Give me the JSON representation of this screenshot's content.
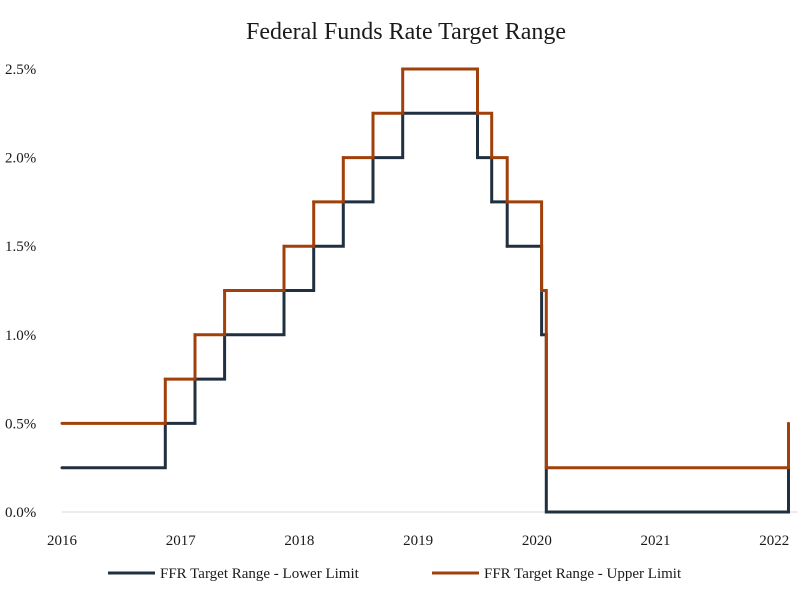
{
  "chart_data": {
    "type": "line",
    "step": true,
    "title": "Federal Funds Rate Target Range",
    "xlabel": "",
    "ylabel": "",
    "xlim": [
      2016.0,
      2022.2
    ],
    "ylim": [
      0.0,
      2.5
    ],
    "x_ticks": [
      {
        "value": 2016,
        "label": "2016"
      },
      {
        "value": 2017,
        "label": "2017"
      },
      {
        "value": 2018,
        "label": "2018"
      },
      {
        "value": 2019,
        "label": "2019"
      },
      {
        "value": 2020,
        "label": "2020"
      },
      {
        "value": 2021,
        "label": "2021"
      },
      {
        "value": 2022,
        "label": "2022"
      }
    ],
    "y_ticks": [
      {
        "value": 0.0,
        "label": "0.0%"
      },
      {
        "value": 0.5,
        "label": "0.5%"
      },
      {
        "value": 1.0,
        "label": "1.0%"
      },
      {
        "value": 1.5,
        "label": "1.5%"
      },
      {
        "value": 2.0,
        "label": "2.0%"
      },
      {
        "value": 2.5,
        "label": "2.5%"
      }
    ],
    "grid": false,
    "legend_position": "bottom",
    "series": [
      {
        "name": "FFR Target Range - Lower Limit",
        "color": "#203040",
        "x": [
          2016.0,
          2016.87,
          2017.12,
          2017.37,
          2017.87,
          2018.12,
          2018.37,
          2018.62,
          2018.87,
          2019.5,
          2019.62,
          2019.75,
          2020.04,
          2020.08,
          2022.12
        ],
        "y": [
          0.25,
          0.5,
          0.75,
          1.0,
          1.25,
          1.5,
          1.75,
          2.0,
          2.25,
          2.0,
          1.75,
          1.5,
          1.0,
          0.0,
          0.25
        ]
      },
      {
        "name": "FFR Target Range - Upper Limit",
        "color": "#a2400c",
        "x": [
          2016.0,
          2016.87,
          2017.12,
          2017.37,
          2017.87,
          2018.12,
          2018.37,
          2018.62,
          2018.87,
          2019.5,
          2019.62,
          2019.75,
          2020.04,
          2020.08,
          2022.12
        ],
        "y": [
          0.5,
          0.75,
          1.0,
          1.25,
          1.5,
          1.75,
          2.0,
          2.25,
          2.5,
          2.25,
          2.0,
          1.75,
          1.25,
          0.25,
          0.5
        ]
      }
    ]
  }
}
